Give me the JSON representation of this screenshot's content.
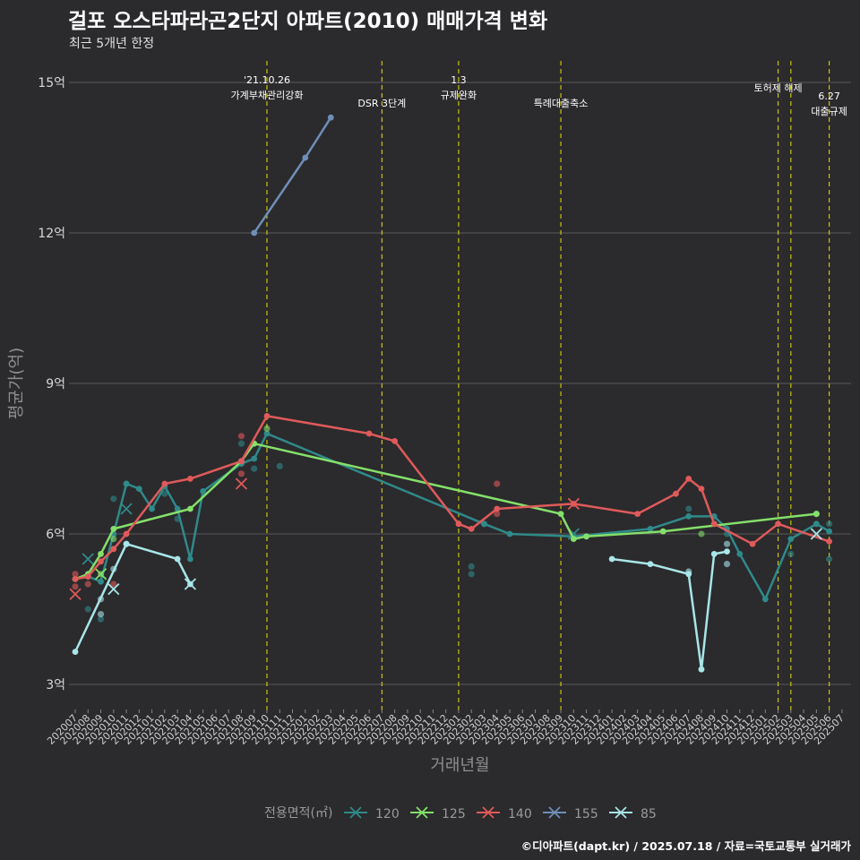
{
  "header": {
    "title": "걸포 오스타파라곤2단지 아파트(2010) 매매가격 변화",
    "subtitle": "최근 5개년 한정"
  },
  "footer": {
    "caption": "©디아파트(dapt.kr) / 2025.07.18 / 자료=국토교통부 실거래가"
  },
  "colors": {
    "background": "#2b2a2d",
    "grid": "#5a5a5d",
    "vline": "#c8c800",
    "s120": "#2f8a8a",
    "s125": "#84e06a",
    "s140": "#e05a5a",
    "s155": "#6f8fb8",
    "s85": "#a8e6e8"
  },
  "chart_data": {
    "type": "line",
    "title": "걸포 오스타파라곤2단지 아파트(2010) 매매가격 변화",
    "xlabel": "거래년월",
    "ylabel": "평균가(억)",
    "ylim": [
      2.5,
      15.5
    ],
    "yticks": [
      3,
      6,
      9,
      12,
      15
    ],
    "ytick_labels": [
      "3억",
      "6억",
      "9억",
      "12억",
      "15억"
    ],
    "categories": [
      "202007",
      "202008",
      "202009",
      "202010",
      "202011",
      "202012",
      "202101",
      "202102",
      "202103",
      "202104",
      "202105",
      "202106",
      "202107",
      "202108",
      "202109",
      "202110",
      "202111",
      "202112",
      "202201",
      "202202",
      "202203",
      "202204",
      "202205",
      "202206",
      "202207",
      "202208",
      "202209",
      "202210",
      "202211",
      "202212",
      "202301",
      "202302",
      "202303",
      "202304",
      "202305",
      "202306",
      "202307",
      "202308",
      "202309",
      "202310",
      "202311",
      "202312",
      "202401",
      "202402",
      "202403",
      "202404",
      "202405",
      "202406",
      "202407",
      "202408",
      "202409",
      "202410",
      "202411",
      "202412",
      "202501",
      "202502",
      "202503",
      "202504",
      "202505",
      "202506",
      "202507"
    ],
    "legend": {
      "title": "전용면적(㎡)",
      "entries": [
        "120",
        "125",
        "140",
        "155",
        "85"
      ],
      "position": "bottom"
    },
    "annotations": [
      {
        "x": "202110",
        "lines": [
          "'21.10.26",
          "가계부채관리강화"
        ]
      },
      {
        "x": "202207",
        "lines": [
          "DSR 3단계"
        ]
      },
      {
        "x": "202301",
        "lines": [
          "1.3",
          "규제완화"
        ]
      },
      {
        "x": "202309",
        "lines": [
          "특례대출축소"
        ]
      },
      {
        "x": "202502",
        "lines": [
          "토허제 해제"
        ]
      },
      {
        "x": "202503",
        "lines": []
      },
      {
        "x": "202506",
        "lines": [
          "6.27",
          "대출규제"
        ]
      }
    ],
    "series": [
      {
        "name": "120",
        "color": "#2f8a8a",
        "line": [
          [
            "202007",
            5.1
          ],
          [
            "202008",
            5.15
          ],
          [
            "202009",
            5.05
          ],
          [
            "202010",
            6.0
          ],
          [
            "202011",
            7.0
          ],
          [
            "202012",
            6.9
          ],
          [
            "202101",
            6.5
          ],
          [
            "202102",
            6.95
          ],
          [
            "202103",
            6.5
          ],
          [
            "202104",
            5.5
          ],
          [
            "202105",
            6.85
          ],
          [
            "202108",
            7.4
          ],
          [
            "202109",
            7.5
          ],
          [
            "202110",
            8.0
          ],
          [
            "202303",
            6.2
          ],
          [
            "202305",
            6.0
          ],
          [
            "202310",
            5.95
          ],
          [
            "202404",
            6.1
          ],
          [
            "202407",
            6.35
          ],
          [
            "202409",
            6.35
          ],
          [
            "202410",
            6.1
          ],
          [
            "202411",
            5.6
          ],
          [
            "202501",
            4.7
          ],
          [
            "202503",
            5.9
          ],
          [
            "202505",
            6.2
          ],
          [
            "202506",
            6.05
          ]
        ],
        "points": [
          [
            "202008",
            4.5
          ],
          [
            "202009",
            4.3
          ],
          [
            "202010",
            6.7
          ],
          [
            "202011",
            7.0
          ],
          [
            "202102",
            6.8
          ],
          [
            "202103",
            6.3
          ],
          [
            "202108",
            7.8
          ],
          [
            "202109",
            7.3
          ],
          [
            "202111",
            7.35
          ],
          [
            "202302",
            5.35
          ],
          [
            "202302",
            5.2
          ],
          [
            "202303",
            6.2
          ],
          [
            "202407",
            6.5
          ],
          [
            "202409",
            6.2
          ],
          [
            "202410",
            6.0
          ],
          [
            "202503",
            5.6
          ],
          [
            "202505",
            6.4
          ],
          [
            "202506",
            6.2
          ],
          [
            "202506",
            5.5
          ]
        ],
        "crosses": [
          [
            "202008",
            5.5
          ],
          [
            "202011",
            6.5
          ],
          [
            "202310",
            6.0
          ]
        ]
      },
      {
        "name": "125",
        "color": "#84e06a",
        "line": [
          [
            "202007",
            5.1
          ],
          [
            "202008",
            5.2
          ],
          [
            "202009",
            5.6
          ],
          [
            "202010",
            6.1
          ],
          [
            "202104",
            6.5
          ],
          [
            "202108",
            7.45
          ],
          [
            "202109",
            7.8
          ],
          [
            "202309",
            6.4
          ],
          [
            "202310",
            5.9
          ],
          [
            "202311",
            5.95
          ],
          [
            "202405",
            6.05
          ],
          [
            "202505",
            6.4
          ]
        ],
        "points": [
          [
            "202009",
            5.2
          ],
          [
            "202010",
            5.9
          ],
          [
            "202110",
            8.1
          ],
          [
            "202408",
            6.0
          ],
          [
            "202505",
            6.4
          ]
        ],
        "crosses": [
          [
            "202009",
            5.2
          ]
        ]
      },
      {
        "name": "140",
        "color": "#e05a5a",
        "line": [
          [
            "202007",
            5.1
          ],
          [
            "202008",
            5.15
          ],
          [
            "202009",
            5.45
          ],
          [
            "202010",
            5.7
          ],
          [
            "202011",
            6.0
          ],
          [
            "202102",
            7.0
          ],
          [
            "202104",
            7.1
          ],
          [
            "202108",
            7.45
          ],
          [
            "202110",
            8.35
          ],
          [
            "202206",
            8.0
          ],
          [
            "202208",
            7.85
          ],
          [
            "202301",
            6.2
          ],
          [
            "202302",
            6.1
          ],
          [
            "202304",
            6.5
          ],
          [
            "202310",
            6.6
          ],
          [
            "202403",
            6.4
          ],
          [
            "202406",
            6.8
          ],
          [
            "202407",
            7.1
          ],
          [
            "202408",
            6.9
          ],
          [
            "202409",
            6.2
          ],
          [
            "202412",
            5.8
          ],
          [
            "202502",
            6.2
          ],
          [
            "202506",
            5.85
          ]
        ],
        "points": [
          [
            "202007",
            5.2
          ],
          [
            "202007",
            4.95
          ],
          [
            "202008",
            5.0
          ],
          [
            "202010",
            5.0
          ],
          [
            "202108",
            7.95
          ],
          [
            "202108",
            7.2
          ],
          [
            "202304",
            7.0
          ],
          [
            "202304",
            6.4
          ]
        ],
        "crosses": [
          [
            "202007",
            4.8
          ],
          [
            "202108",
            7.0
          ],
          [
            "202310",
            6.6
          ]
        ]
      },
      {
        "name": "155",
        "color": "#6f8fb8",
        "line": [
          [
            "202109",
            12.0
          ],
          [
            "202201",
            13.5
          ],
          [
            "202203",
            14.3
          ]
        ],
        "points": [],
        "crosses": []
      },
      {
        "name": "85",
        "color": "#a8e6e8",
        "line": [
          [
            "202007",
            3.65
          ],
          [
            "202011",
            5.8
          ],
          [
            "202103",
            5.5
          ],
          [
            "202104",
            5.0
          ]
        ],
        "line2": [
          [
            "202401",
            5.5
          ],
          [
            "202404",
            5.4
          ],
          [
            "202407",
            5.2
          ],
          [
            "202408",
            3.3
          ],
          [
            "202409",
            5.6
          ],
          [
            "202410",
            5.65
          ]
        ],
        "points": [
          [
            "202009",
            4.4
          ],
          [
            "202009",
            4.7
          ],
          [
            "202010",
            5.3
          ],
          [
            "202011",
            5.8
          ],
          [
            "202407",
            5.25
          ],
          [
            "202410",
            5.4
          ],
          [
            "202410",
            5.8
          ]
        ],
        "crosses": [
          [
            "202010",
            4.9
          ],
          [
            "202104",
            5.0
          ],
          [
            "202505",
            6.0
          ]
        ]
      }
    ]
  }
}
